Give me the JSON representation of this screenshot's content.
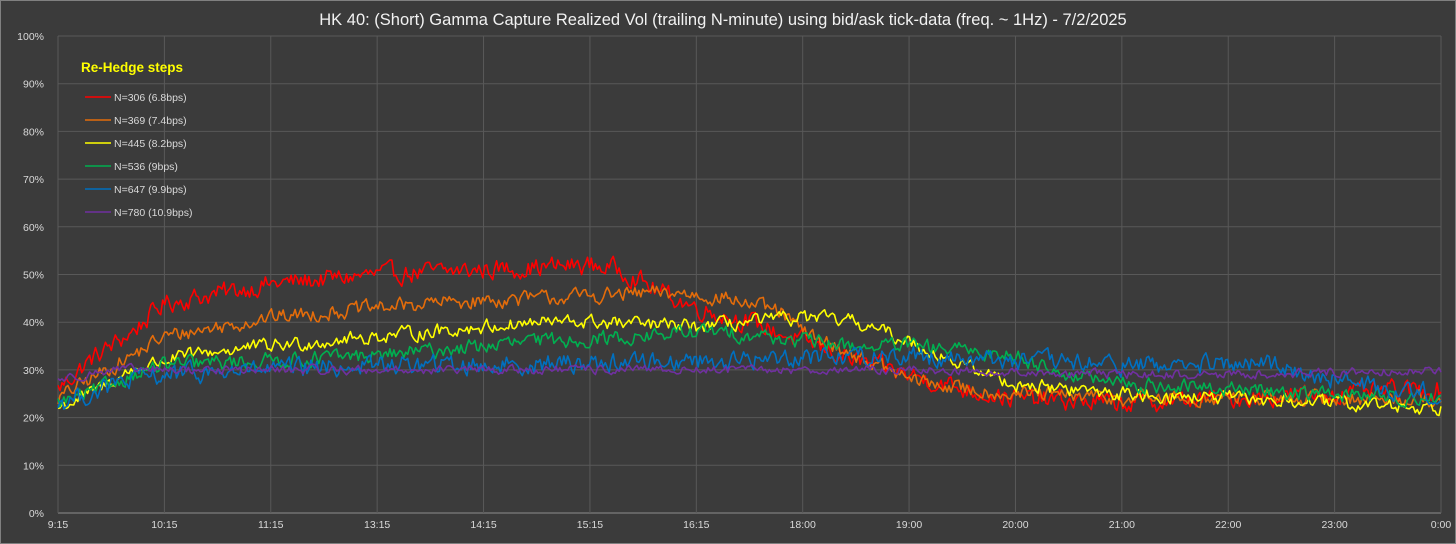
{
  "chart_data": {
    "type": "line",
    "title": "HK 40: (Short) Gamma Capture Realized Vol (trailing N-minute) using bid/ask tick-data (freq. ~ 1Hz) - 7/2/2025",
    "xlabel": "",
    "ylabel": "",
    "ylim": [
      0,
      100
    ],
    "y_ticks": [
      "0%",
      "10%",
      "20%",
      "30%",
      "40%",
      "50%",
      "60%",
      "70%",
      "80%",
      "90%",
      "100%"
    ],
    "x_tick_labels": [
      "9:15",
      "10:15",
      "11:15",
      "13:15",
      "14:15",
      "15:15",
      "16:15",
      "18:00",
      "19:00",
      "20:00",
      "21:00",
      "22:00",
      "23:00",
      "0:00"
    ],
    "grid": true,
    "legend": {
      "title": "Re-Hedge steps",
      "placement": "top-left"
    },
    "series": [
      {
        "name": "N=306 (6.8bps)",
        "color": "#ff0000",
        "keypoints": [
          [
            0,
            26
          ],
          [
            0.3,
            32
          ],
          [
            0.7,
            38
          ],
          [
            1,
            44
          ],
          [
            1.5,
            46
          ],
          [
            2,
            48
          ],
          [
            2.5,
            49
          ],
          [
            3,
            50
          ],
          [
            3.5,
            50.5
          ],
          [
            4,
            51
          ],
          [
            4.5,
            51.5
          ],
          [
            5,
            52
          ],
          [
            5.3,
            51
          ],
          [
            5.6,
            47
          ],
          [
            6,
            43
          ],
          [
            6.5,
            40
          ],
          [
            7,
            36
          ],
          [
            7.5,
            32
          ],
          [
            8,
            29
          ],
          [
            8.5,
            26
          ],
          [
            9,
            24
          ],
          [
            10,
            23
          ],
          [
            11,
            24
          ],
          [
            12,
            25
          ],
          [
            13,
            26
          ]
        ],
        "noise": 1.8
      },
      {
        "name": "N=369 (7.4bps)",
        "color": "#e46c0a",
        "keypoints": [
          [
            0,
            24
          ],
          [
            0.3,
            28
          ],
          [
            0.7,
            33
          ],
          [
            1,
            37
          ],
          [
            1.5,
            39
          ],
          [
            2,
            41
          ],
          [
            2.5,
            42
          ],
          [
            3,
            43
          ],
          [
            3.5,
            44
          ],
          [
            4,
            44.5
          ],
          [
            4.5,
            45
          ],
          [
            5,
            45.5
          ],
          [
            5.5,
            46
          ],
          [
            5.9,
            46
          ],
          [
            6.3,
            45
          ],
          [
            6.8,
            42
          ],
          [
            7,
            38
          ],
          [
            7.5,
            33
          ],
          [
            8,
            28
          ],
          [
            8.5,
            26
          ],
          [
            9,
            25
          ],
          [
            10,
            24
          ],
          [
            11,
            24
          ],
          [
            12,
            24
          ],
          [
            13,
            24
          ]
        ],
        "noise": 1.4
      },
      {
        "name": "N=445 (8.2bps)",
        "color": "#ffff00",
        "keypoints": [
          [
            0,
            22
          ],
          [
            0.3,
            25
          ],
          [
            0.7,
            30
          ],
          [
            1,
            32
          ],
          [
            1.5,
            34
          ],
          [
            2,
            35
          ],
          [
            2.5,
            36
          ],
          [
            3,
            37
          ],
          [
            3.5,
            38
          ],
          [
            4,
            39
          ],
          [
            4.5,
            40
          ],
          [
            5,
            40
          ],
          [
            5.5,
            39.5
          ],
          [
            6,
            39
          ],
          [
            6.5,
            40
          ],
          [
            7,
            41
          ],
          [
            7.5,
            40
          ],
          [
            8,
            36
          ],
          [
            8.5,
            31
          ],
          [
            9,
            27
          ],
          [
            10,
            25
          ],
          [
            11,
            24
          ],
          [
            12,
            23
          ],
          [
            13,
            22
          ]
        ],
        "noise": 1.3
      },
      {
        "name": "N=536 (9bps)",
        "color": "#00b050",
        "keypoints": [
          [
            0,
            23
          ],
          [
            0.3,
            25
          ],
          [
            0.7,
            29
          ],
          [
            1,
            31
          ],
          [
            1.5,
            31.5
          ],
          [
            2,
            32
          ],
          [
            2.5,
            32.5
          ],
          [
            3,
            33
          ],
          [
            3.5,
            34
          ],
          [
            4,
            35
          ],
          [
            4.5,
            36
          ],
          [
            5,
            36.5
          ],
          [
            5.5,
            37
          ],
          [
            6,
            38
          ],
          [
            6.5,
            37.5
          ],
          [
            7,
            36
          ],
          [
            7.5,
            35
          ],
          [
            8,
            35
          ],
          [
            8.5,
            34
          ],
          [
            9,
            33
          ],
          [
            9.5,
            29
          ],
          [
            10,
            27
          ],
          [
            11,
            26
          ],
          [
            12,
            25
          ],
          [
            13,
            24
          ]
        ],
        "noise": 1.4
      },
      {
        "name": "N=647 (9.9bps)",
        "color": "#0070c0",
        "keypoints": [
          [
            0,
            23
          ],
          [
            0.3,
            25
          ],
          [
            0.7,
            28
          ],
          [
            1,
            29
          ],
          [
            2,
            30
          ],
          [
            3,
            31
          ],
          [
            4,
            31
          ],
          [
            5,
            31.5
          ],
          [
            6,
            32
          ],
          [
            6.5,
            32
          ],
          [
            7,
            33
          ],
          [
            7.5,
            33
          ],
          [
            8,
            33
          ],
          [
            9,
            32
          ],
          [
            10,
            31
          ],
          [
            11,
            31
          ],
          [
            11.5,
            31
          ],
          [
            12,
            28
          ],
          [
            12.5,
            26
          ],
          [
            13,
            25
          ]
        ],
        "noise": 1.8
      },
      {
        "name": "N=780 (10.9bps)",
        "color": "#7030a0",
        "keypoints": [
          [
            0,
            28
          ],
          [
            0.5,
            30
          ],
          [
            1,
            30
          ],
          [
            2,
            30
          ],
          [
            3,
            30
          ],
          [
            4,
            30
          ],
          [
            5,
            30
          ],
          [
            6,
            30
          ],
          [
            7,
            30
          ],
          [
            8,
            30
          ],
          [
            9,
            29.5
          ],
          [
            10,
            29
          ],
          [
            11,
            29
          ],
          [
            12,
            29.5
          ],
          [
            13,
            30
          ]
        ],
        "noise": 0.8
      }
    ]
  }
}
